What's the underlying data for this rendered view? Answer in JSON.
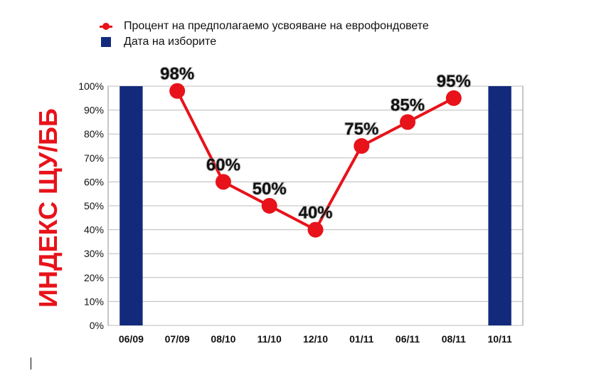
{
  "legend": {
    "line_label": "Процент на предполагаемо усвояване на еврофондовете",
    "bar_label": "Дата на изборите"
  },
  "colors": {
    "line": "#e8121a",
    "bar": "#132a7c",
    "ylabel": "#e8121a",
    "grid": "#bcbcbc"
  },
  "chart_data": {
    "type": "line",
    "title": "",
    "xlabel": "",
    "ylabel": "ИНДЕКС ЩУ/ББ",
    "categories": [
      "06/09",
      "07/09",
      "08/10",
      "11/10",
      "12/10",
      "01/11",
      "06/11",
      "08/11",
      "10/11"
    ],
    "ylim": [
      0,
      100
    ],
    "yticks": [
      "0%",
      "10%",
      "20%",
      "30%",
      "40%",
      "50%",
      "60%",
      "70%",
      "80%",
      "90%",
      "100%"
    ],
    "grid": true,
    "legend_position": "top-left",
    "series": [
      {
        "name": "Процент на предполагаемо усвояване на еврофондовете",
        "kind": "line",
        "points": [
          {
            "x": "07/09",
            "y": 98,
            "label": "98%"
          },
          {
            "x": "08/10",
            "y": 60,
            "label": "60%"
          },
          {
            "x": "11/10",
            "y": 50,
            "label": "50%"
          },
          {
            "x": "12/10",
            "y": 40,
            "label": "40%"
          },
          {
            "x": "01/11",
            "y": 75,
            "label": "75%"
          },
          {
            "x": "06/11",
            "y": 85,
            "label": "85%"
          },
          {
            "x": "08/11",
            "y": 95,
            "label": "95%"
          }
        ]
      },
      {
        "name": "Дата на изборите",
        "kind": "bar",
        "points": [
          {
            "x": "06/09",
            "y": 100
          },
          {
            "x": "10/11",
            "y": 100
          }
        ]
      }
    ]
  }
}
